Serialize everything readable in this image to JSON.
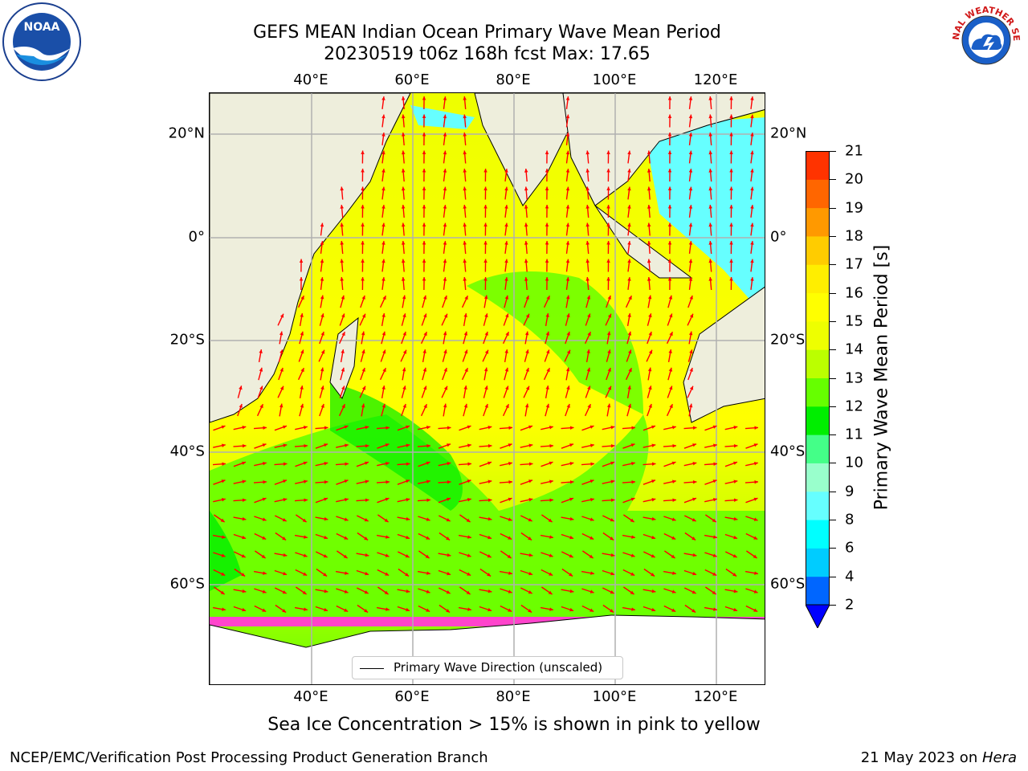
{
  "title": {
    "line1": "GEFS MEAN Indian Ocean Primary Wave Mean Period",
    "line2": "20230519 t06z 168h fcst   Max: 17.65"
  },
  "axes": {
    "lon_labels_top": [
      "40°E",
      "60°E",
      "80°E",
      "100°E",
      "120°E"
    ],
    "lon_labels_bottom": [
      "40°E",
      "60°E",
      "80°E",
      "100°E",
      "120°E"
    ],
    "lat_labels_left": [
      "20°N",
      "0°",
      "20°S",
      "40°S",
      "60°S"
    ],
    "lat_labels_right": [
      "20°N",
      "0°",
      "20°S",
      "40°S",
      "60°S"
    ],
    "lon_range": [
      20,
      130
    ],
    "lat_range": [
      -70,
      30
    ],
    "gridlines": true
  },
  "colorbar": {
    "title": "Primary Wave Mean Period [s]",
    "ticks": [
      "2",
      "4",
      "6",
      "8",
      "9",
      "10",
      "11",
      "12",
      "13",
      "14",
      "15",
      "16",
      "17",
      "18",
      "19",
      "20",
      "21"
    ],
    "levels": [
      2,
      4,
      6,
      8,
      9,
      10,
      11,
      12,
      13,
      14,
      15,
      16,
      17,
      18,
      19,
      20,
      21
    ],
    "colors": [
      "#0066ff",
      "#00ccff",
      "#00ffff",
      "#66ffff",
      "#99ffcc",
      "#44ff88",
      "#00ee00",
      "#66ff00",
      "#bbff00",
      "#eeff00",
      "#ffff00",
      "#ffee00",
      "#ffcc00",
      "#ff9900",
      "#ff6600",
      "#ff3300",
      "#ff0000"
    ],
    "under_color": "#0000ff"
  },
  "legend": {
    "label": "Primary Wave Direction (unscaled)"
  },
  "caption": "Sea Ice Concentration > 15% is shown in pink to yellow",
  "footer": {
    "left": "NCEP/EMC/Verification Post Processing Product Generation Branch",
    "right_date": "21 May 2023 on ",
    "right_machine": "Hera"
  },
  "logos": {
    "noaa_text": "NOAA",
    "nws_text": "NATIONAL WEATHER SERVICE"
  },
  "map_colors": {
    "land": "#eeeedc",
    "antarctica": "#ffffff",
    "sea_ice": "#ff44cc",
    "arrow": "#ff0000"
  }
}
